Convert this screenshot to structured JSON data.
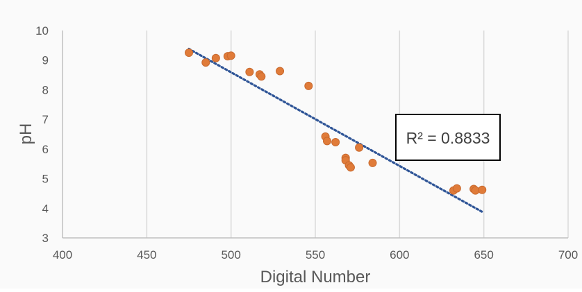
{
  "chart_data": {
    "type": "scatter",
    "title": "",
    "xlabel": "Digital Number",
    "ylabel": "pH",
    "xlim": [
      400,
      700
    ],
    "ylim": [
      3,
      10
    ],
    "x_ticks": [
      400,
      450,
      500,
      550,
      600,
      650,
      700
    ],
    "y_ticks": [
      3,
      4,
      5,
      6,
      7,
      8,
      9,
      10
    ],
    "grid": "vertical",
    "series": [
      {
        "color": "#E07B39",
        "points": [
          {
            "x": 475,
            "y": 9.25
          },
          {
            "x": 485,
            "y": 8.92
          },
          {
            "x": 491,
            "y": 9.07
          },
          {
            "x": 498,
            "y": 9.13
          },
          {
            "x": 500,
            "y": 9.15
          },
          {
            "x": 511,
            "y": 8.6
          },
          {
            "x": 517,
            "y": 8.52
          },
          {
            "x": 518,
            "y": 8.45
          },
          {
            "x": 529,
            "y": 8.63
          },
          {
            "x": 546,
            "y": 8.13
          },
          {
            "x": 556,
            "y": 6.42
          },
          {
            "x": 557,
            "y": 6.27
          },
          {
            "x": 562,
            "y": 6.23
          },
          {
            "x": 576,
            "y": 6.05
          },
          {
            "x": 568,
            "y": 5.7
          },
          {
            "x": 568,
            "y": 5.62
          },
          {
            "x": 570,
            "y": 5.45
          },
          {
            "x": 571,
            "y": 5.38
          },
          {
            "x": 584,
            "y": 5.53
          },
          {
            "x": 632,
            "y": 4.6
          },
          {
            "x": 634,
            "y": 4.67
          },
          {
            "x": 644,
            "y": 4.65
          },
          {
            "x": 645,
            "y": 4.6
          },
          {
            "x": 649,
            "y": 4.62
          }
        ]
      }
    ],
    "trendline": {
      "style": "dotted",
      "color": "#2F5597",
      "start": {
        "x": 475,
        "y": 9.38
      },
      "end": {
        "x": 649,
        "y": 3.88
      }
    },
    "annotation": {
      "text": "R² = 0.8833"
    },
    "colors": {
      "marker": "#E07B39",
      "trendline": "#2F5597",
      "axis_text": "#595959",
      "grid": "#D9D9D9"
    }
  }
}
